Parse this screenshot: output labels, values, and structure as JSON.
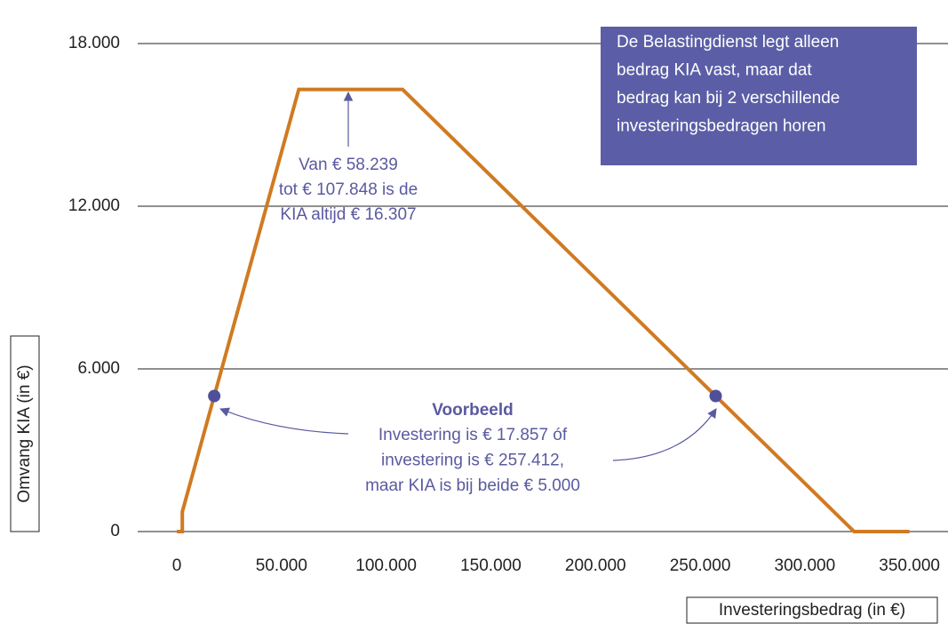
{
  "chart_data": {
    "type": "line",
    "x_label": "Investeringsbedrag (in €)",
    "y_label": "Omvang KIA (in €)",
    "x": [
      0,
      2601,
      2601,
      58239,
      107848,
      323549,
      350000
    ],
    "series": [
      {
        "name": "KIA",
        "color": "#d07a22",
        "values": [
          0,
          0,
          728,
          16307,
          16307,
          0,
          0
        ]
      }
    ],
    "points": {
      "x": [
        17857,
        257412
      ],
      "values": [
        5000,
        5000
      ],
      "color": "#4f4f9c"
    },
    "xlim": [
      -18700,
      368400
    ],
    "ylim": [
      0,
      18000
    ],
    "xticks": [
      0,
      {
        "value": 50000,
        "label": "50.000"
      },
      {
        "value": 100000,
        "label": "100.000"
      },
      {
        "value": 150000,
        "label": "150.000"
      },
      {
        "value": 200000,
        "label": "200.000"
      },
      {
        "value": 250000,
        "label": "250.000"
      },
      {
        "value": 300000,
        "label": "300.000"
      },
      {
        "value": 350000,
        "label": "350.000"
      }
    ],
    "yticks": [
      0,
      {
        "value": 6000,
        "label": "6.000"
      },
      {
        "value": 12000,
        "label": "12.000"
      },
      {
        "value": 18000,
        "label": "18.000"
      }
    ],
    "grid": true,
    "annotation_top": [
      "Van € 58.239",
      "tot € 107.848 is de",
      "KIA altijd € 16.307"
    ],
    "example_title": "Voorbeeld",
    "example_lines": [
      "Investering is € 17.857 óf",
      "investering is € 257.412,",
      "maar KIA is bij beide € 5.000"
    ],
    "note_lines": [
      "De Belastingdienst legt alleen",
      "bedrag KIA vast, maar dat",
      "bedrag kan bij 2 verschillende",
      "investeringsbedragen horen"
    ]
  }
}
